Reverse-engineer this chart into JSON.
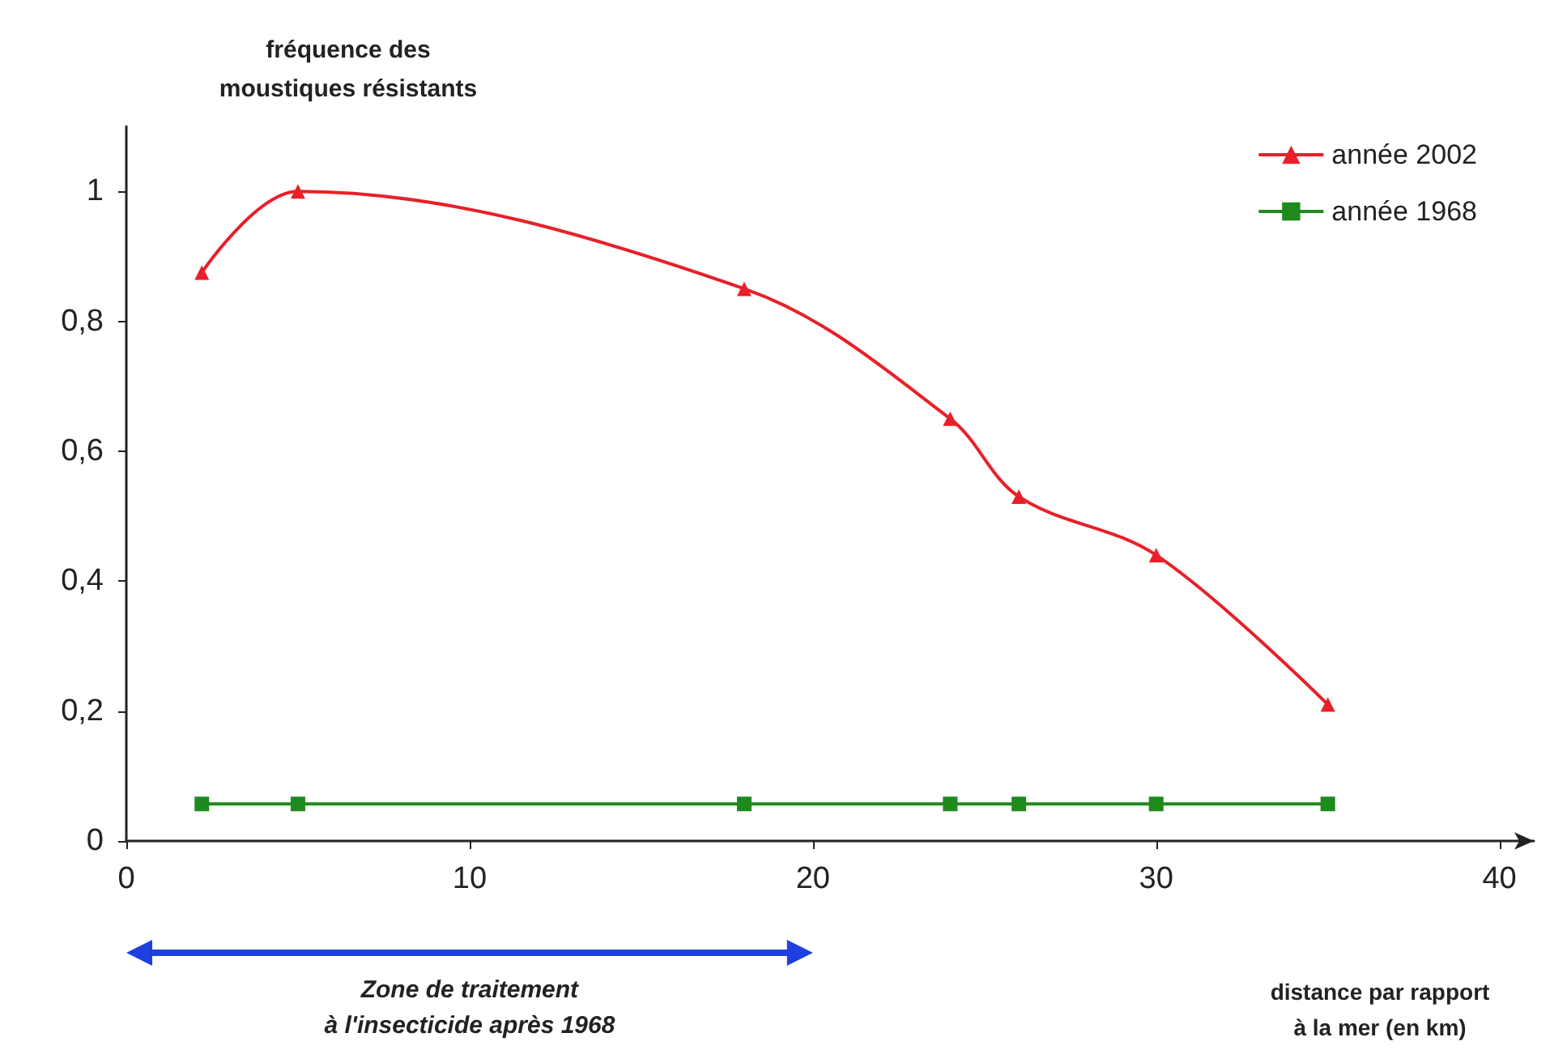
{
  "chart_data": {
    "type": "line",
    "ylabel": "fréquence des\nmoustiques résistants",
    "xlabel": "distance par rapport\nà la mer (en km)",
    "x": [
      2.2,
      5,
      18,
      24,
      26,
      30,
      35
    ],
    "series": [
      {
        "name": "année 2002",
        "color": "#e8202a",
        "marker": "triangle",
        "values": [
          0.875,
          1.0,
          0.85,
          0.65,
          0.53,
          0.44,
          0.21
        ]
      },
      {
        "name": "année 1968",
        "color": "#1e8a1e",
        "marker": "square",
        "values": [
          0.057,
          0.057,
          0.057,
          0.057,
          0.057,
          0.057,
          0.057
        ]
      }
    ],
    "xlim": [
      0,
      41
    ],
    "xticks": [
      0,
      10,
      20,
      30,
      40
    ],
    "ylim": [
      0,
      1.1
    ],
    "yticks": [
      0,
      {
        "value": 0.2,
        "label": "0,2"
      },
      {
        "value": 0.4,
        "label": "0,4"
      },
      {
        "value": 0.6,
        "label": "0,6"
      },
      {
        "value": 0.8,
        "label": "0,8"
      },
      1
    ],
    "annotations": [
      "Zone de traitement\nà l'insecticide après 1968"
    ],
    "legend": "top right",
    "grid": false,
    "line_style": "solid"
  }
}
